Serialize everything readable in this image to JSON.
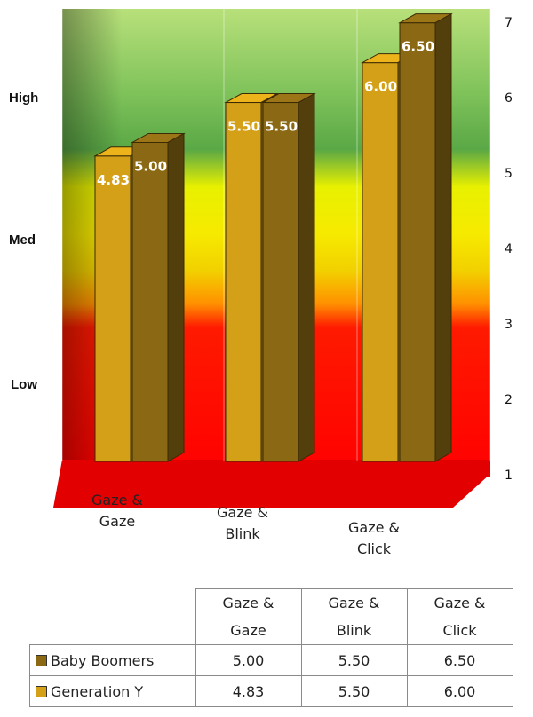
{
  "chart_data": {
    "type": "bar",
    "categories": [
      "Gaze &\nGaze",
      "Gaze &\nBlink",
      "Gaze &\nClick"
    ],
    "series": [
      {
        "name": "Baby Boomers",
        "values": [
          5.0,
          5.5,
          6.5
        ],
        "color": "#8B6914"
      },
      {
        "name": "Generation Y",
        "values": [
          4.83,
          5.5,
          6.0
        ],
        "color": "#D4A017"
      }
    ],
    "data_labels": [
      [
        "5.00",
        "5.50",
        "6.50"
      ],
      [
        "4.83",
        "5.50",
        "6.00"
      ]
    ],
    "ylim": [
      1,
      7
    ],
    "yticks": [
      "1",
      "2",
      "3",
      "4",
      "5",
      "6",
      "7"
    ],
    "zone_labels": [
      "High",
      "Med",
      "Low"
    ],
    "zone_colors": {
      "high": "#3f8f3a",
      "med": "#f5e600",
      "low": "#ff0000"
    },
    "grid": true,
    "three_d": true
  },
  "table": {
    "headers": [
      [
        "Gaze &",
        "Gaze"
      ],
      [
        "Gaze &",
        "Blink"
      ],
      [
        "Gaze &",
        "Click"
      ]
    ],
    "rows": [
      {
        "label": "Baby Boomers",
        "color": "#8B6914",
        "values": [
          "5.00",
          "5.50",
          "6.50"
        ]
      },
      {
        "label": "Generation Y",
        "color": "#D4A017",
        "values": [
          "4.83",
          "5.50",
          "6.00"
        ]
      }
    ]
  }
}
